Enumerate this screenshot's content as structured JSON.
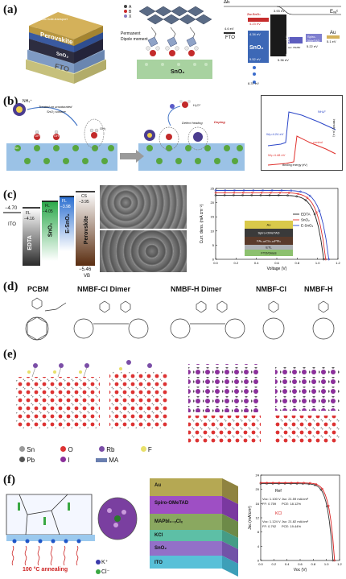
{
  "panel_a": {
    "label": "(a)",
    "stack_layers": [
      "Au",
      "Organic hole-transport",
      "Perovskite",
      "SnO2",
      "FTO"
    ],
    "perovskite": "Perovskite",
    "sno2": "SnO₂",
    "fto": "FTO",
    "legend": [
      "A",
      "B",
      "X"
    ],
    "dipole": [
      "Permanent",
      "Dipole moment"
    ],
    "substrate": "SnO₂",
    "delta_e": "ΔE",
    "e_vac": "Eᵥₐᶜ",
    "zw_sno2": "Zw-SnO₂",
    "zw_val": "4.23 eV",
    "fto_ev": "4.6 eV",
    "sno2_ev": "4.34 eV",
    "sno2_label": "SnO₂",
    "sno2_cb": "5.52 eV",
    "sno2_vb": "8.37 eV",
    "fto_label": "FTO",
    "pk_top": "3.93 eV",
    "pk_label": "Perovskite",
    "pk_bottom": "5.36 eV",
    "spiro": [
      "Spiro-",
      "OMeTAD"
    ],
    "spiro_ev": "5.22 eV",
    "au": "Au",
    "au_ev": "5.1 eV",
    "side": "sec. PEABr"
  },
  "panel_b": {
    "label": "(b)",
    "nh4": "NH₄⁺",
    "note1": "Treated on unsaturated",
    "note2": "SnO₂ surface",
    "oh": "OH",
    "oh2": "OH₂",
    "sn": "Sn",
    "defect": "Defect healing",
    "doping": "Doping",
    "h2o": "H₂O⁺",
    "plot_nh4f": "NH₄F",
    "plot_control": "control",
    "wf1": "Wₑ=4.24 eV",
    "wf2": "Wₑ=4.48 eV",
    "xlabel": "Binding energy (eV)",
    "ylabel": "Intensity (a.u.)"
  },
  "panel_c": {
    "label": "(c)",
    "ito_val": "−4.70",
    "ito": "ITO",
    "edta": "EDTA",
    "sno2": "SnO₂",
    "esno2": "E-SnO₂",
    "perovskite": "Perovskite",
    "fl1": "FL",
    "fl1_val": "−4.16",
    "fl2": "FL",
    "fl2_val": "−4.05",
    "fl3": "FL",
    "fl3_val": "−3.98",
    "cs": "CS",
    "cs_val": "−3.95",
    "vb_val": "−5.46",
    "vb": "VB",
    "chart_ylabel": "Curr. dens. (mA cm⁻²)",
    "chart_xlabel": "Voltage (V)",
    "legend": [
      "EDTA",
      "SnO₂",
      "E-SnO₂"
    ],
    "inset": [
      "Au",
      "Spiro-OMeTAD",
      "FA₀.₉₅Cs₀.₀₅PbI₃",
      "ETL",
      "FTO/Glass"
    ]
  },
  "panel_d": {
    "label": "(d)",
    "names": [
      "PCBM",
      "NMBF-Cl Dimer",
      "NMBF-H Dimer",
      "NMBF-Cl",
      "NMBF-H"
    ]
  },
  "panel_e": {
    "label": "(e)",
    "legend": [
      "Sn",
      "O",
      "Rb",
      "F",
      "Pb",
      "I",
      "MA"
    ]
  },
  "panel_f": {
    "label": "(f)",
    "annealing": "100 °C annealing",
    "kplus": "K⁺",
    "cl": "Cl⁻",
    "layers": [
      "Au",
      "Spiro-OMeTAD",
      "MAPbI₃₋ₓClₓ",
      "KCl",
      "SnO₂",
      "ITO"
    ],
    "ylabel": "Jsc (mA/cm²)",
    "xlabel": "Voc (V)",
    "ref": "Ref",
    "ref_voc": "Voc: 1.100 V",
    "ref_jsc": "Jsc: 21.59 mA/cm²",
    "ref_ff": "FF: 0.759",
    "ref_pce": "PCE: 18.12%",
    "kcl": "KCl",
    "kcl_voc": "Voc: 1.124 V",
    "kcl_jsc": "Jsc: 21.82 mA/cm²",
    "kcl_ff": "FF: 0.792",
    "kcl_pce": "PCE: 19.44%"
  },
  "chart_data": [
    {
      "type": "line",
      "title": "",
      "xlabel": "Voltage (V)",
      "ylabel": "Curr. dens. (mA cm⁻²)",
      "xlim": [
        0,
        1.2
      ],
      "ylim": [
        0,
        25
      ],
      "xticks": [
        0.0,
        0.2,
        0.4,
        0.6,
        0.8,
        1.0,
        1.2
      ],
      "yticks": [
        0,
        5,
        10,
        15,
        20,
        25
      ],
      "series": [
        {
          "name": "EDTA",
          "color": "#222222",
          "jsc": 22.6,
          "voc": 1.06
        },
        {
          "name": "SnO₂",
          "color": "#e0302c",
          "jsc": 23.5,
          "voc": 1.08
        },
        {
          "name": "E-SnO₂",
          "color": "#2b46c8",
          "jsc": 24.3,
          "voc": 1.11
        }
      ]
    },
    {
      "type": "line",
      "title": "",
      "xlabel": "Voc (V)",
      "ylabel": "Jsc (mA/cm²)",
      "xlim": [
        0.0,
        1.2
      ],
      "ylim": [
        0,
        24
      ],
      "xticks": [
        0.0,
        0.2,
        0.4,
        0.6,
        0.8,
        1.0,
        1.2
      ],
      "yticks": [
        0,
        4,
        8,
        12,
        16,
        20,
        24
      ],
      "series": [
        {
          "name": "Ref",
          "color": "#333333",
          "jsc": 21.59,
          "voc": 1.1
        },
        {
          "name": "KCl",
          "color": "#d92020",
          "jsc": 21.82,
          "voc": 1.124
        }
      ]
    }
  ]
}
